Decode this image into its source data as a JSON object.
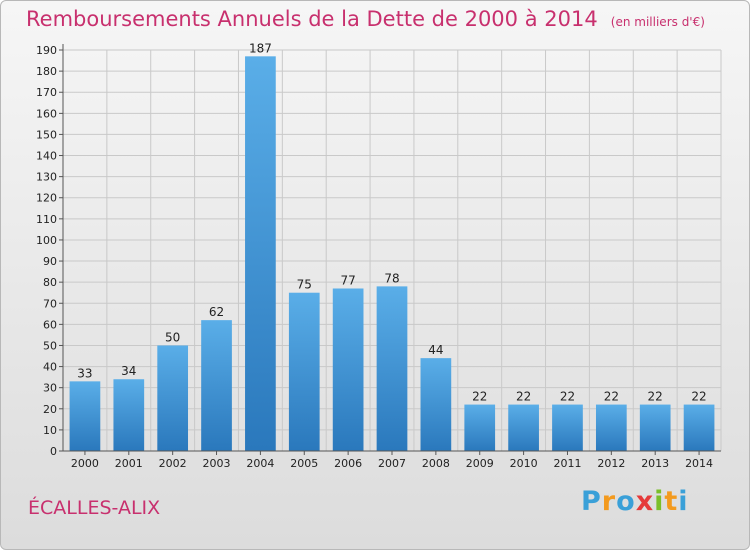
{
  "chart_data": {
    "type": "bar",
    "title": "Remboursements Annuels de la Dette de 2000 à 2014",
    "subtitle": "(en milliers d'€)",
    "categories": [
      "2000",
      "2001",
      "2002",
      "2003",
      "2004",
      "2005",
      "2006",
      "2007",
      "2008",
      "2009",
      "2010",
      "2011",
      "2012",
      "2013",
      "2014"
    ],
    "values": [
      33,
      34,
      50,
      62,
      187,
      75,
      77,
      78,
      44,
      22,
      22,
      22,
      22,
      22,
      22
    ],
    "ylim": [
      0,
      190
    ],
    "ytick_step": 10,
    "grid": true,
    "bar_color_light": "#5aaee8",
    "bar_color_dark": "#2a78bc"
  },
  "footer": {
    "commune": "ÉCALLES-ALIX"
  },
  "logo": {
    "letters": [
      "P",
      "r",
      "o",
      "x",
      "i",
      "t",
      "i"
    ],
    "colors": [
      "#3aa0d8",
      "#f39a1e",
      "#3aa0d8",
      "#e53a3a",
      "#7bbf2a",
      "#f39a1e",
      "#3aa0d8"
    ]
  }
}
